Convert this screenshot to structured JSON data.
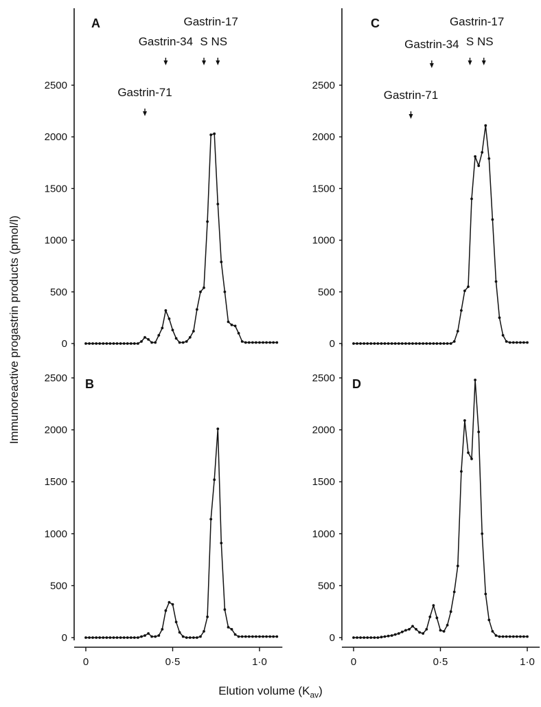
{
  "y_axis_label": "Immunoreactive progastrin products (pmol/l)",
  "x_axis_label": "Elution volume",
  "x_axis_unit_main": "K",
  "x_axis_unit_sub": "av",
  "markers": {
    "gastrin71": "Gastrin-71",
    "gastrin34": "Gastrin-34",
    "gastrin17": "Gastrin-17",
    "s": "S",
    "ns": "NS"
  },
  "chart_data": [
    {
      "panel": "A",
      "type": "line",
      "ylim": [
        0,
        2500
      ],
      "yticks": [
        0,
        500,
        1000,
        1500,
        2000,
        2500
      ],
      "xlim": [
        0,
        1.1
      ],
      "xticks": [
        "0",
        "0·5",
        "1·0"
      ],
      "markers_x": {
        "Gastrin-71": 0.34,
        "Gastrin-34": 0.46,
        "S": 0.68,
        "NS": 0.76
      },
      "x": [
        0,
        0.02,
        0.04,
        0.06,
        0.08,
        0.1,
        0.12,
        0.14,
        0.16,
        0.18,
        0.2,
        0.22,
        0.24,
        0.26,
        0.28,
        0.3,
        0.32,
        0.34,
        0.36,
        0.38,
        0.4,
        0.42,
        0.44,
        0.46,
        0.48,
        0.5,
        0.52,
        0.54,
        0.56,
        0.58,
        0.6,
        0.62,
        0.64,
        0.66,
        0.68,
        0.7,
        0.72,
        0.74,
        0.76,
        0.78,
        0.8,
        0.82,
        0.84,
        0.86,
        0.88,
        0.9,
        0.92,
        0.94,
        0.96,
        0.98,
        1.0,
        1.02,
        1.04,
        1.06,
        1.08,
        1.1
      ],
      "values": [
        0,
        0,
        0,
        0,
        0,
        0,
        0,
        0,
        0,
        0,
        0,
        0,
        0,
        0,
        0,
        0,
        20,
        60,
        40,
        10,
        10,
        80,
        150,
        320,
        240,
        130,
        50,
        10,
        10,
        20,
        60,
        120,
        330,
        500,
        540,
        1180,
        2020,
        2030,
        1350,
        790,
        500,
        210,
        180,
        170,
        100,
        20,
        10,
        10,
        10,
        10,
        10,
        10,
        10,
        10,
        10,
        10
      ]
    },
    {
      "panel": "B",
      "type": "line",
      "ylim": [
        0,
        2500
      ],
      "yticks": [
        0,
        500,
        1000,
        1500,
        2000,
        2500
      ],
      "xlim": [
        0,
        1.1
      ],
      "xticks": [
        "0",
        "0·5",
        "1·0"
      ],
      "x": [
        0,
        0.02,
        0.04,
        0.06,
        0.08,
        0.1,
        0.12,
        0.14,
        0.16,
        0.18,
        0.2,
        0.22,
        0.24,
        0.26,
        0.28,
        0.3,
        0.32,
        0.34,
        0.36,
        0.38,
        0.4,
        0.42,
        0.44,
        0.46,
        0.48,
        0.5,
        0.52,
        0.54,
        0.56,
        0.58,
        0.6,
        0.62,
        0.64,
        0.66,
        0.68,
        0.7,
        0.72,
        0.74,
        0.76,
        0.78,
        0.8,
        0.82,
        0.84,
        0.86,
        0.88,
        0.9,
        0.92,
        0.94,
        0.96,
        0.98,
        1.0,
        1.02,
        1.04,
        1.06,
        1.08,
        1.1
      ],
      "values": [
        0,
        0,
        0,
        0,
        0,
        0,
        0,
        0,
        0,
        0,
        0,
        0,
        0,
        0,
        0,
        0,
        10,
        20,
        40,
        10,
        10,
        20,
        80,
        260,
        340,
        320,
        150,
        50,
        10,
        0,
        0,
        0,
        0,
        10,
        60,
        200,
        1140,
        1520,
        2010,
        910,
        270,
        100,
        80,
        30,
        10,
        10,
        10,
        10,
        10,
        10,
        10,
        10,
        10,
        10,
        10,
        10
      ]
    },
    {
      "panel": "C",
      "type": "line",
      "ylim": [
        0,
        2500
      ],
      "yticks": [
        0,
        500,
        1000,
        1500,
        2000,
        2500
      ],
      "xlim": [
        0,
        1.04
      ],
      "xticks": [
        "0",
        "0·5",
        "1·0"
      ],
      "markers_x": {
        "Gastrin-71": 0.33,
        "Gastrin-34": 0.45,
        "S": 0.67,
        "NS": 0.75
      },
      "x": [
        0,
        0.02,
        0.04,
        0.06,
        0.08,
        0.1,
        0.12,
        0.14,
        0.16,
        0.18,
        0.2,
        0.22,
        0.24,
        0.26,
        0.28,
        0.3,
        0.32,
        0.34,
        0.36,
        0.38,
        0.4,
        0.42,
        0.44,
        0.46,
        0.48,
        0.5,
        0.52,
        0.54,
        0.56,
        0.58,
        0.6,
        0.62,
        0.64,
        0.66,
        0.68,
        0.7,
        0.72,
        0.74,
        0.76,
        0.78,
        0.8,
        0.82,
        0.84,
        0.86,
        0.88,
        0.9,
        0.92,
        0.94,
        0.96,
        0.98,
        1.0
      ],
      "values": [
        0,
        0,
        0,
        0,
        0,
        0,
        0,
        0,
        0,
        0,
        0,
        0,
        0,
        0,
        0,
        0,
        0,
        0,
        0,
        0,
        0,
        0,
        0,
        0,
        0,
        0,
        0,
        0,
        0,
        20,
        120,
        320,
        510,
        550,
        1400,
        1810,
        1720,
        1850,
        2110,
        1790,
        1200,
        600,
        250,
        80,
        20,
        10,
        10,
        10,
        10,
        10,
        10
      ]
    },
    {
      "panel": "D",
      "type": "line",
      "ylim": [
        0,
        2500
      ],
      "yticks": [
        0,
        500,
        1000,
        1500,
        2000,
        2500
      ],
      "xlim": [
        0,
        1.04
      ],
      "xticks": [
        "0",
        "0·5",
        "1·0"
      ],
      "x": [
        0,
        0.02,
        0.04,
        0.06,
        0.08,
        0.1,
        0.12,
        0.14,
        0.16,
        0.18,
        0.2,
        0.22,
        0.24,
        0.26,
        0.28,
        0.3,
        0.32,
        0.34,
        0.36,
        0.38,
        0.4,
        0.42,
        0.44,
        0.46,
        0.48,
        0.5,
        0.52,
        0.54,
        0.56,
        0.58,
        0.6,
        0.62,
        0.64,
        0.66,
        0.68,
        0.7,
        0.72,
        0.74,
        0.76,
        0.78,
        0.8,
        0.82,
        0.84,
        0.86,
        0.88,
        0.9,
        0.92,
        0.94,
        0.96,
        0.98,
        1.0
      ],
      "values": [
        0,
        0,
        0,
        0,
        0,
        0,
        0,
        0,
        5,
        10,
        15,
        20,
        30,
        40,
        55,
        70,
        80,
        110,
        80,
        50,
        40,
        80,
        200,
        310,
        190,
        70,
        60,
        120,
        250,
        440,
        690,
        1600,
        2090,
        1780,
        1720,
        2480,
        1980,
        1000,
        420,
        170,
        60,
        20,
        10,
        10,
        10,
        10,
        10,
        10,
        10,
        10,
        10
      ]
    }
  ]
}
